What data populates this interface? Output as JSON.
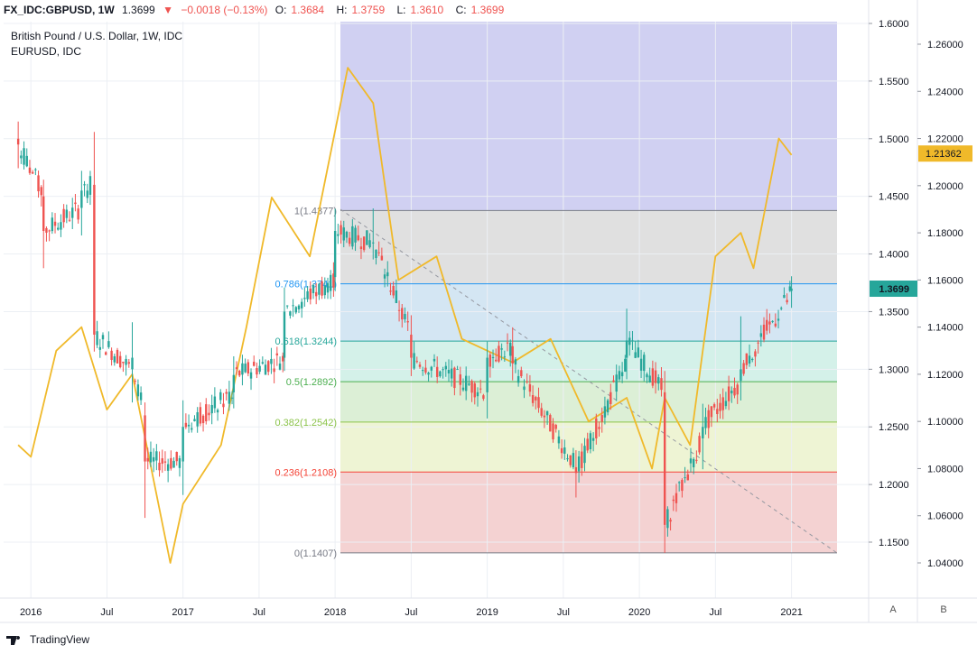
{
  "header": {
    "symbol": "FX_IDC:GBPUSD, 1W",
    "last": "1.3699",
    "arrow": "▼",
    "change": "−0.0018 (−0.13%)",
    "o_label": "O:",
    "o": "1.3684",
    "h_label": "H:",
    "h": "1.3759",
    "l_label": "L:",
    "l": "1.3610",
    "c_label": "C:",
    "c": "1.3699"
  },
  "legend": {
    "main": "British Pound / U.S. Dollar, 1W, IDC",
    "secondary": "EURUSD, IDC"
  },
  "footer": {
    "brand": "TradingView"
  },
  "scale_buttons": {
    "a": "A",
    "b": "B"
  },
  "colors": {
    "up": "#26a69a",
    "down": "#ef5350",
    "eurusd": "#f0b92a",
    "eurusd_overlay": "#d6a446",
    "price_badge": "#26a69a",
    "eur_badge": "#f0b92a"
  },
  "chart_data": {
    "type": "candlestick",
    "x_ticks": [
      "2016",
      "Jul",
      "2017",
      "Jul",
      "2018",
      "Jul",
      "2019",
      "Jul",
      "2020",
      "Jul",
      "2021"
    ],
    "left_axis": {
      "ticks": [
        "1.6000",
        "1.5500",
        "1.5000",
        "1.4500",
        "1.4000",
        "1.3500",
        "1.3000",
        "1.2500",
        "1.2000",
        "1.1500"
      ],
      "ylim": [
        1.1,
        1.6
      ]
    },
    "right_axis": {
      "ticks": [
        "1.26000",
        "1.24000",
        "1.22000",
        "1.20000",
        "1.18000",
        "1.16000",
        "1.14000",
        "1.12000",
        "1.10000",
        "1.08000",
        "1.06000",
        "1.04000"
      ],
      "ylim": [
        1.03,
        1.27
      ]
    },
    "last_price_badge": "1.3699",
    "eurusd_badge": "1.21362",
    "fibonacci": {
      "levels": [
        {
          "label": "1(1.4377)",
          "value": 1.4377,
          "color": "#787b86",
          "fill": "#e0e0e0"
        },
        {
          "label": "0.786(1.3741)",
          "value": 1.3741,
          "color": "#2196f3",
          "fill": "#d4e6f3"
        },
        {
          "label": "0.618(1.3244)",
          "value": 1.3244,
          "color": "#26a69a",
          "fill": "#d4f1e9"
        },
        {
          "label": "0.5(1.2892)",
          "value": 1.2892,
          "color": "#4caf50",
          "fill": "#dcefd6"
        },
        {
          "label": "0.382(1.2542)",
          "value": 1.2542,
          "color": "#8bc34a",
          "fill": "#eef4d4"
        },
        {
          "label": "0.236(1.2108)",
          "value": 1.2108,
          "color": "#f44336",
          "fill": "#f4d2d2"
        },
        {
          "label": "0(1.1407)",
          "value": 1.1407,
          "color": "#787b86",
          "fill": ""
        }
      ],
      "upper_fill": "#d0d0f2"
    },
    "gbpusd_weekly": [
      {
        "date": "2015-12",
        "o": 1.5,
        "h": 1.51,
        "l": 1.48,
        "c": 1.495
      },
      {
        "date": "2016-02",
        "o": 1.45,
        "h": 1.46,
        "l": 1.39,
        "c": 1.42
      },
      {
        "date": "2016-05",
        "o": 1.44,
        "h": 1.47,
        "l": 1.42,
        "c": 1.455
      },
      {
        "date": "2016-06",
        "o": 1.46,
        "h": 1.5,
        "l": 1.32,
        "c": 1.33
      },
      {
        "date": "2016-09",
        "o": 1.3,
        "h": 1.34,
        "l": 1.28,
        "c": 1.31
      },
      {
        "date": "2016-10",
        "o": 1.26,
        "h": 1.27,
        "l": 1.18,
        "c": 1.22
      },
      {
        "date": "2017-01",
        "o": 1.22,
        "h": 1.27,
        "l": 1.2,
        "c": 1.25
      },
      {
        "date": "2017-05",
        "o": 1.28,
        "h": 1.31,
        "l": 1.27,
        "c": 1.295
      },
      {
        "date": "2017-09",
        "o": 1.31,
        "h": 1.365,
        "l": 1.3,
        "c": 1.35
      },
      {
        "date": "2018-01",
        "o": 1.38,
        "h": 1.43,
        "l": 1.37,
        "c": 1.42
      },
      {
        "date": "2018-04",
        "o": 1.41,
        "h": 1.437,
        "l": 1.4,
        "c": 1.41
      },
      {
        "date": "2018-07",
        "o": 1.33,
        "h": 1.34,
        "l": 1.3,
        "c": 1.31
      },
      {
        "date": "2019-01",
        "o": 1.28,
        "h": 1.32,
        "l": 1.26,
        "c": 1.31
      },
      {
        "date": "2019-03",
        "o": 1.32,
        "h": 1.33,
        "l": 1.3,
        "c": 1.305
      },
      {
        "date": "2019-08",
        "o": 1.215,
        "h": 1.225,
        "l": 1.196,
        "c": 1.21
      },
      {
        "date": "2019-12",
        "o": 1.31,
        "h": 1.35,
        "l": 1.3,
        "c": 1.325
      },
      {
        "date": "2020-03",
        "o": 1.28,
        "h": 1.29,
        "l": 1.141,
        "c": 1.165
      },
      {
        "date": "2020-06",
        "o": 1.24,
        "h": 1.27,
        "l": 1.22,
        "c": 1.25
      },
      {
        "date": "2020-09",
        "o": 1.29,
        "h": 1.34,
        "l": 1.28,
        "c": 1.3
      },
      {
        "date": "2021-01",
        "o": 1.368,
        "h": 1.376,
        "l": 1.361,
        "c": 1.37
      }
    ],
    "eurusd_line": [
      {
        "date": "2015-12",
        "v": 1.09
      },
      {
        "date": "2016-01",
        "v": 1.085
      },
      {
        "date": "2016-03",
        "v": 1.13
      },
      {
        "date": "2016-05",
        "v": 1.14
      },
      {
        "date": "2016-07",
        "v": 1.105
      },
      {
        "date": "2016-09",
        "v": 1.12
      },
      {
        "date": "2016-12",
        "v": 1.04
      },
      {
        "date": "2017-01",
        "v": 1.065
      },
      {
        "date": "2017-04",
        "v": 1.09
      },
      {
        "date": "2017-06",
        "v": 1.14
      },
      {
        "date": "2017-08",
        "v": 1.195
      },
      {
        "date": "2017-11",
        "v": 1.17
      },
      {
        "date": "2018-02",
        "v": 1.25
      },
      {
        "date": "2018-04",
        "v": 1.235
      },
      {
        "date": "2018-06",
        "v": 1.16
      },
      {
        "date": "2018-09",
        "v": 1.17
      },
      {
        "date": "2018-11",
        "v": 1.135
      },
      {
        "date": "2019-03",
        "v": 1.125
      },
      {
        "date": "2019-06",
        "v": 1.135
      },
      {
        "date": "2019-09",
        "v": 1.1
      },
      {
        "date": "2019-12",
        "v": 1.11
      },
      {
        "date": "2020-02",
        "v": 1.08
      },
      {
        "date": "2020-03",
        "v": 1.11
      },
      {
        "date": "2020-05",
        "v": 1.09
      },
      {
        "date": "2020-07",
        "v": 1.17
      },
      {
        "date": "2020-09",
        "v": 1.18
      },
      {
        "date": "2020-10",
        "v": 1.165
      },
      {
        "date": "2020-12",
        "v": 1.22
      },
      {
        "date": "2021-01",
        "v": 1.213
      }
    ]
  }
}
